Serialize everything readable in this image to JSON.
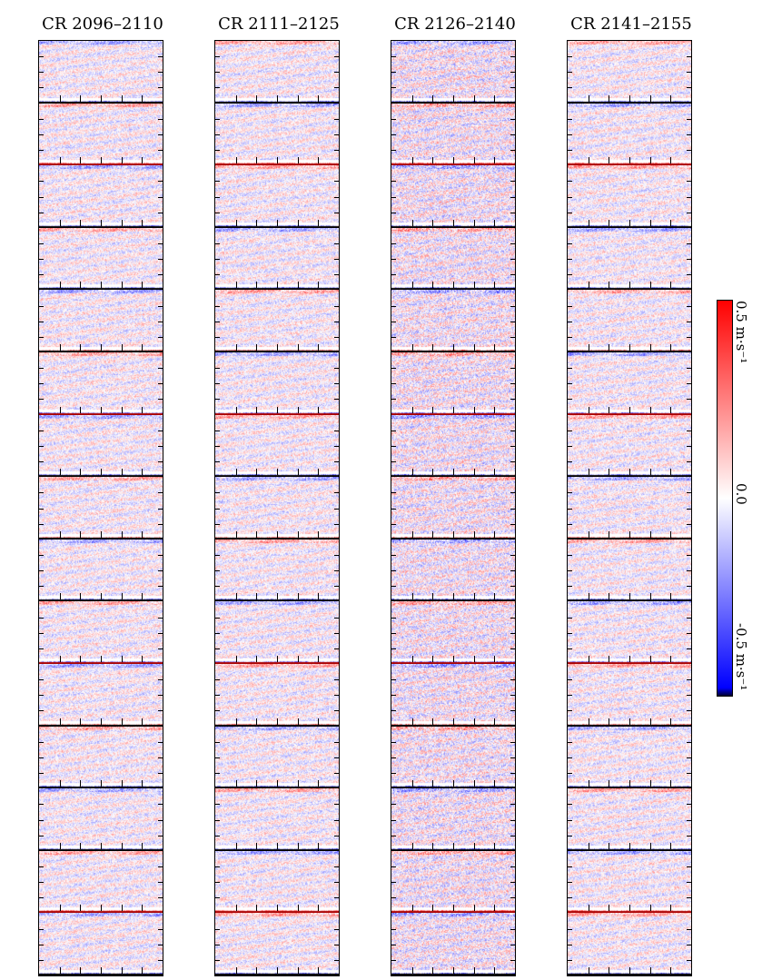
{
  "chart_data": {
    "type": "heatmap",
    "description_title": "",
    "columns": [
      {
        "title": "CR 2096–2110",
        "first_rotation": 2096,
        "last_rotation": 2110
      },
      {
        "title": "CR 2111–2125",
        "first_rotation": 2111,
        "last_rotation": 2125
      },
      {
        "title": "CR 2126–2140",
        "first_rotation": 2126,
        "last_rotation": 2140
      },
      {
        "title": "CR 2141–2155",
        "first_rotation": 2141,
        "last_rotation": 2155
      }
    ],
    "panels_per_column": 15,
    "colorbar": {
      "min": -0.5,
      "max": 0.5,
      "labels": [
        "0.5 m·s⁻¹",
        "0.0",
        "-0.5 m·s⁻¹"
      ],
      "colormap": [
        "#0000ff",
        "#ffffff",
        "#ff0000"
      ]
    }
  },
  "colors": {
    "positive": "#ff0000",
    "neutral": "#ffffff",
    "negative": "#0000ff",
    "frame": "#000000"
  }
}
